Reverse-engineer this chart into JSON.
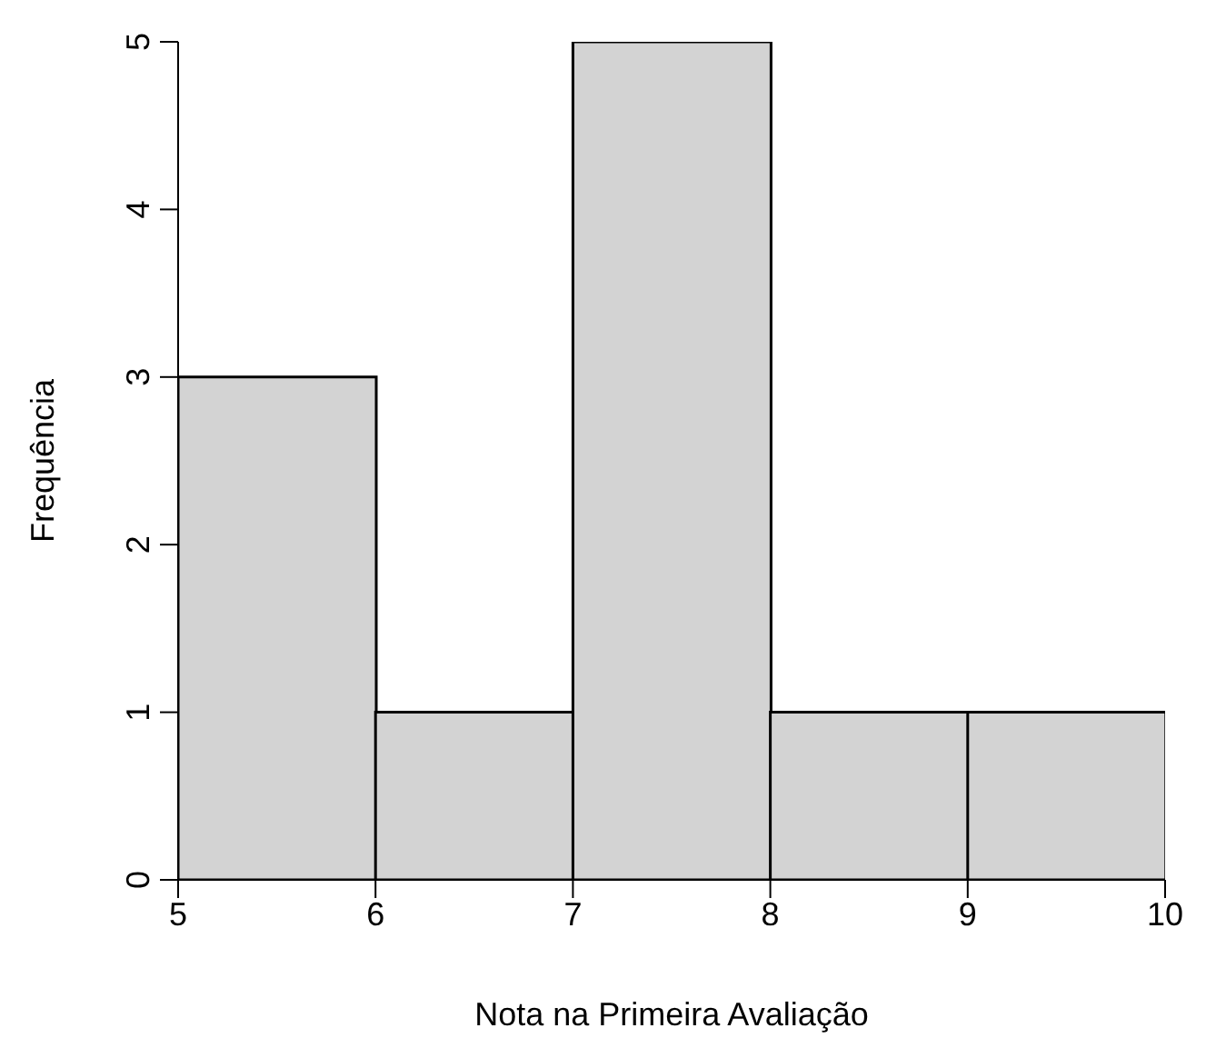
{
  "chart_data": {
    "type": "histogram",
    "xlabel": "Nota na Primeira Avaliação",
    "ylabel": "Frequência",
    "bins": [
      5,
      6,
      7,
      8,
      9,
      10
    ],
    "values": [
      3,
      1,
      5,
      1,
      1
    ],
    "color": "#d3d3d3",
    "xlim": [
      5,
      10
    ],
    "xticks": [
      5,
      6,
      7,
      8,
      9,
      10
    ],
    "ylim": [
      0,
      5
    ],
    "yticks": [
      0,
      1,
      2,
      3,
      4,
      5
    ]
  }
}
